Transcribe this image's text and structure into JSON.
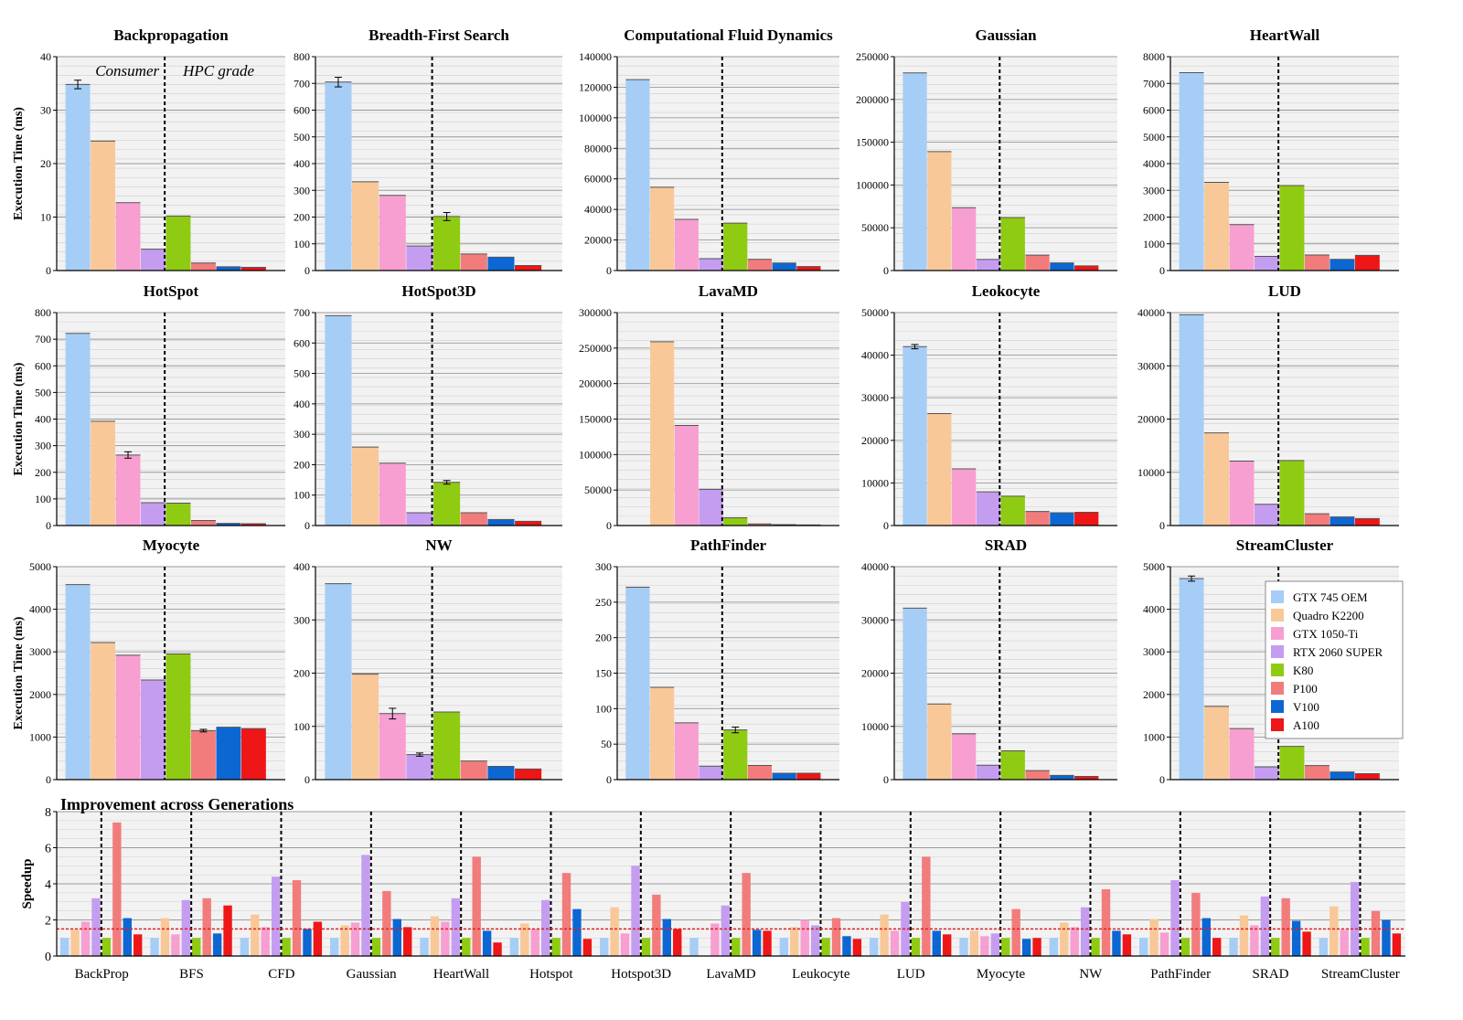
{
  "series": [
    {
      "name": "GTX 745 OEM",
      "color": "#a6cdf5"
    },
    {
      "name": "Quadro K2200",
      "color": "#f9c898"
    },
    {
      "name": "GTX 1050-Ti",
      "color": "#f79fd0"
    },
    {
      "name": "RTX 2060 SUPER",
      "color": "#c59df0"
    },
    {
      "name": "K80",
      "color": "#8fcb13"
    },
    {
      "name": "P100",
      "color": "#f27c7c"
    },
    {
      "name": "V100",
      "color": "#0c67d3"
    },
    {
      "name": "A100",
      "color": "#ee1616"
    }
  ],
  "annotations": {
    "consumer": "Consumer",
    "hpc": "HPC grade"
  },
  "ylabel": "Execution Time (ms)",
  "chart_data": [
    {
      "type": "bar",
      "title": "Backpropagation",
      "ylim": [
        0,
        40
      ],
      "yticks": [
        0,
        10,
        20,
        30,
        40
      ],
      "values": [
        34.8,
        24.2,
        12.7,
        4.0,
        10.2,
        1.4,
        0.7,
        0.6
      ],
      "errors": [
        0.8,
        0,
        0,
        0,
        0,
        0,
        0,
        0
      ]
    },
    {
      "type": "bar",
      "title": "Breadth-First Search",
      "ylim": [
        0,
        800
      ],
      "yticks": [
        0,
        100,
        200,
        300,
        400,
        500,
        600,
        700,
        800
      ],
      "values": [
        705,
        332,
        281,
        92,
        202,
        62,
        50,
        19
      ],
      "errors": [
        18,
        0,
        0,
        0,
        15,
        0,
        0,
        0
      ]
    },
    {
      "type": "bar",
      "title": "Computational Fluid Dynamics",
      "ylim": [
        0,
        140000
      ],
      "yticks": [
        0,
        20000,
        40000,
        60000,
        80000,
        100000,
        120000,
        140000
      ],
      "values": [
        125000,
        54500,
        33500,
        7800,
        31000,
        7300,
        4900,
        2600
      ],
      "errors": [
        0,
        0,
        0,
        0,
        0,
        0,
        0,
        0
      ]
    },
    {
      "type": "bar",
      "title": "Gaussian",
      "ylim": [
        0,
        250000
      ],
      "yticks": [
        0,
        50000,
        100000,
        150000,
        200000,
        250000
      ],
      "values": [
        231000,
        139000,
        73500,
        13000,
        62000,
        18000,
        9000,
        5500
      ],
      "errors": [
        0,
        0,
        0,
        0,
        0,
        0,
        0,
        0
      ]
    },
    {
      "type": "bar",
      "title": "HeartWall",
      "ylim": [
        0,
        8000
      ],
      "yticks": [
        0,
        1000,
        2000,
        3000,
        4000,
        5000,
        6000,
        7000,
        8000
      ],
      "values": [
        7400,
        3300,
        1720,
        530,
        3180,
        580,
        420,
        570
      ],
      "errors": [
        0,
        0,
        0,
        0,
        0,
        0,
        0,
        0
      ]
    },
    {
      "type": "bar",
      "title": "HotSpot",
      "ylim": [
        0,
        800
      ],
      "yticks": [
        0,
        100,
        200,
        300,
        400,
        500,
        600,
        700,
        800
      ],
      "values": [
        722,
        392,
        265,
        86,
        84,
        19,
        8,
        7
      ],
      "errors": [
        0,
        0,
        12,
        0,
        0,
        0,
        0,
        0
      ]
    },
    {
      "type": "bar",
      "title": "HotSpot3D",
      "ylim": [
        0,
        700
      ],
      "yticks": [
        0,
        100,
        200,
        300,
        400,
        500,
        600,
        700
      ],
      "values": [
        690,
        258,
        205,
        42,
        142,
        42,
        20,
        14
      ],
      "errors": [
        0,
        0,
        0,
        0,
        6,
        0,
        0,
        0
      ]
    },
    {
      "type": "bar",
      "title": "LavaMD",
      "ylim": [
        0,
        300000
      ],
      "yticks": [
        0,
        50000,
        100000,
        150000,
        200000,
        250000,
        300000
      ],
      "values": [
        0,
        259000,
        141000,
        51000,
        11000,
        2200,
        1300,
        800
      ],
      "errors": [
        0,
        0,
        0,
        0,
        0,
        0,
        0,
        0
      ]
    },
    {
      "type": "bar",
      "title": "Leokocyte",
      "ylim": [
        0,
        50000
      ],
      "yticks": [
        0,
        10000,
        20000,
        30000,
        40000,
        50000
      ],
      "values": [
        42000,
        26300,
        13300,
        7900,
        6900,
        3300,
        3000,
        3100
      ],
      "errors": [
        500,
        0,
        0,
        0,
        0,
        0,
        0,
        0
      ]
    },
    {
      "type": "bar",
      "title": "LUD",
      "ylim": [
        0,
        40000
      ],
      "yticks": [
        0,
        10000,
        20000,
        30000,
        40000
      ],
      "values": [
        39600,
        17400,
        12100,
        4000,
        12200,
        2200,
        1600,
        1300
      ],
      "errors": [
        0,
        0,
        0,
        0,
        0,
        0,
        0,
        0
      ]
    },
    {
      "type": "bar",
      "title": "Myocyte",
      "ylim": [
        0,
        5000
      ],
      "yticks": [
        0,
        1000,
        2000,
        3000,
        4000,
        5000
      ],
      "values": [
        4580,
        3220,
        2920,
        2340,
        2950,
        1150,
        1230,
        1200
      ],
      "errors": [
        0,
        0,
        0,
        0,
        0,
        30,
        0,
        0
      ]
    },
    {
      "type": "bar",
      "title": "NW",
      "ylim": [
        0,
        400
      ],
      "yticks": [
        0,
        100,
        200,
        300,
        400
      ],
      "values": [
        368,
        198,
        124,
        47,
        127,
        35,
        25,
        20
      ],
      "errors": [
        0,
        0,
        10,
        3,
        0,
        0,
        0,
        0
      ]
    },
    {
      "type": "bar",
      "title": "PathFinder",
      "ylim": [
        0,
        300
      ],
      "yticks": [
        0,
        50,
        100,
        150,
        200,
        250,
        300
      ],
      "values": [
        271,
        130,
        80,
        19,
        70,
        20,
        9,
        9
      ],
      "errors": [
        0,
        0,
        0,
        0,
        4,
        0,
        0,
        0
      ]
    },
    {
      "type": "bar",
      "title": "SRAD",
      "ylim": [
        0,
        40000
      ],
      "yticks": [
        0,
        10000,
        20000,
        30000,
        40000
      ],
      "values": [
        32200,
        14200,
        8600,
        2700,
        5400,
        1700,
        800,
        600
      ],
      "errors": [
        0,
        0,
        0,
        0,
        0,
        0,
        0,
        0
      ]
    },
    {
      "type": "bar",
      "title": "StreamCluster",
      "ylim": [
        0,
        5000
      ],
      "yticks": [
        0,
        1000,
        2000,
        3000,
        4000,
        5000
      ],
      "values": [
        4720,
        1720,
        1200,
        300,
        780,
        330,
        180,
        140
      ],
      "errors": [
        60,
        0,
        0,
        0,
        0,
        0,
        0,
        0
      ]
    },
    {
      "type": "bar",
      "title": "Improvement across Generations",
      "ylabel": "Speedup",
      "ylim": [
        0,
        8
      ],
      "yticks": [
        0,
        2,
        4,
        6,
        8
      ],
      "reference_line": 1.5,
      "categories": [
        "BackProp",
        "BFS",
        "CFD",
        "Gaussian",
        "HeartWall",
        "Hotspot",
        "Hotspot3D",
        "LavaMD",
        "Leukocyte",
        "LUD",
        "Myocyte",
        "NW",
        "PathFinder",
        "SRAD",
        "StreamCluster"
      ],
      "values": [
        [
          1.0,
          1.45,
          1.9,
          3.2,
          1.0,
          7.4,
          2.1,
          1.2
        ],
        [
          1.0,
          2.1,
          1.2,
          3.1,
          1.0,
          3.2,
          1.25,
          2.8
        ],
        [
          1.0,
          2.3,
          1.6,
          4.4,
          1.0,
          4.2,
          1.5,
          1.9
        ],
        [
          1.0,
          1.7,
          1.85,
          5.6,
          1.0,
          3.6,
          2.05,
          1.6
        ],
        [
          1.0,
          2.2,
          1.9,
          3.2,
          1.0,
          5.5,
          1.4,
          0.75
        ],
        [
          1.0,
          1.8,
          1.5,
          3.1,
          1.0,
          4.6,
          2.6,
          0.95
        ],
        [
          1.0,
          2.7,
          1.25,
          5.0,
          1.0,
          3.4,
          2.05,
          1.5
        ],
        [
          1.0,
          0,
          1.8,
          2.8,
          1.0,
          4.6,
          1.45,
          1.4
        ],
        [
          1.0,
          1.6,
          2.0,
          1.7,
          1.0,
          2.1,
          1.1,
          0.95
        ],
        [
          1.0,
          2.3,
          1.4,
          3.0,
          1.0,
          5.5,
          1.4,
          1.2
        ],
        [
          1.0,
          1.4,
          1.1,
          1.25,
          1.0,
          2.6,
          0.95,
          1.0
        ],
        [
          1.0,
          1.85,
          1.6,
          2.7,
          1.0,
          3.7,
          1.4,
          1.2
        ],
        [
          1.0,
          2.05,
          1.3,
          4.2,
          1.0,
          3.5,
          2.1,
          1.0
        ],
        [
          1.0,
          2.25,
          1.7,
          3.3,
          1.0,
          3.2,
          1.95,
          1.35
        ],
        [
          1.0,
          2.75,
          1.45,
          4.1,
          1.0,
          2.5,
          2.0,
          1.25
        ]
      ]
    }
  ]
}
